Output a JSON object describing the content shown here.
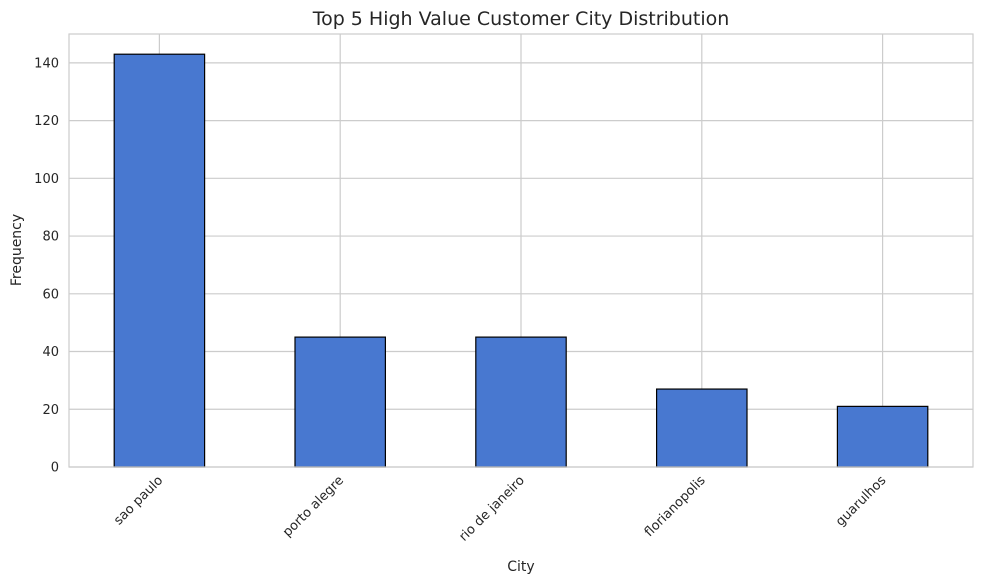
{
  "chart_data": {
    "type": "bar",
    "title": "Top 5 High Value Customer City Distribution",
    "xlabel": "City",
    "ylabel": "Frequency",
    "categories": [
      "sao paulo",
      "porto alegre",
      "rio de janeiro",
      "florianopolis",
      "guarulhos"
    ],
    "values": [
      143,
      45,
      45,
      27,
      21
    ],
    "ylim": [
      0,
      150
    ],
    "yticks": [
      0,
      20,
      40,
      60,
      80,
      100,
      120,
      140
    ],
    "grid": true,
    "bar_color": "#4878d0",
    "bar_edge_color": "#000000"
  }
}
